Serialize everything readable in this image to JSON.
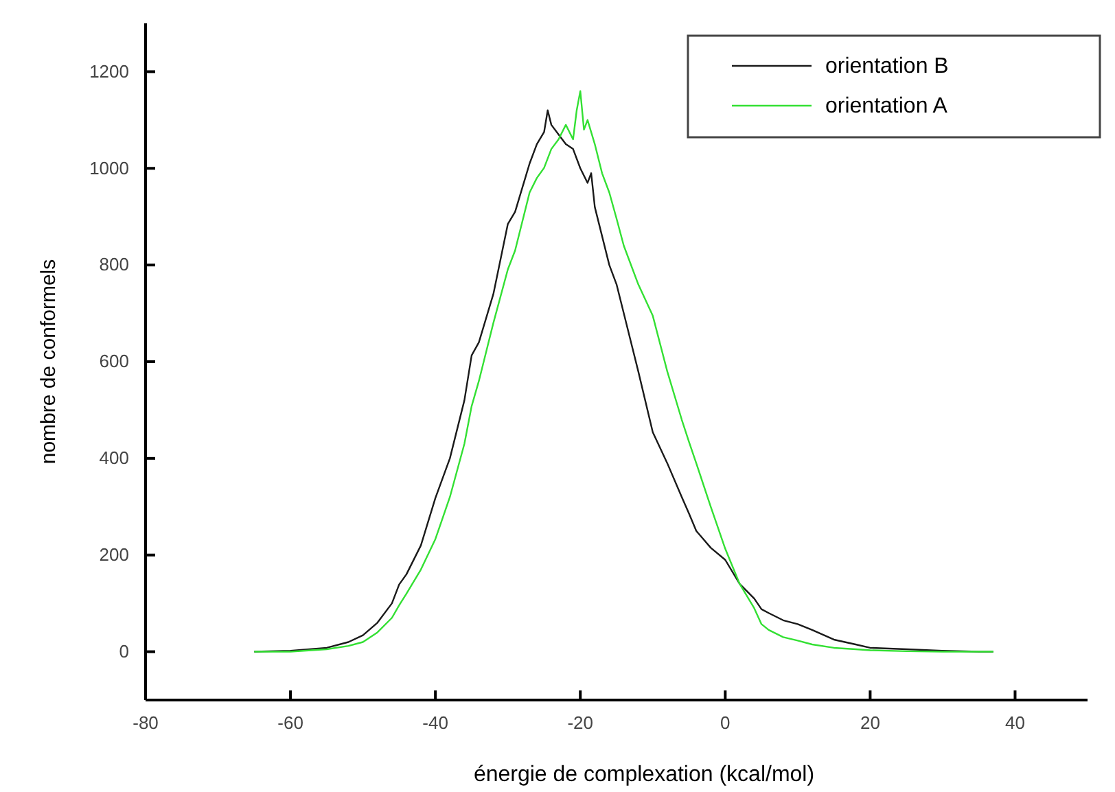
{
  "chart_data": {
    "type": "line",
    "xlabel": "énergie de complexation (kcal/mol)",
    "ylabel": "nombre de conformels",
    "xlim": [
      -80,
      50
    ],
    "xticks": [
      -80,
      -60,
      -40,
      -20,
      0,
      20,
      40
    ],
    "ylim": [
      -100,
      1300
    ],
    "yticks": [
      0,
      200,
      400,
      600,
      800,
      1000,
      1200
    ],
    "legend": "top right",
    "grid": false,
    "marker": "none",
    "line_style": "solid",
    "series": [
      {
        "name": "orientation B",
        "color": "#1a1a1a",
        "x": [
          -65,
          -60,
          -55,
          -52,
          -50,
          -48,
          -46,
          -45,
          -44,
          -42,
          -40,
          -38,
          -36,
          -35,
          -34,
          -32,
          -30,
          -29,
          -28,
          -27,
          -26,
          -25,
          -24.5,
          -24,
          -23,
          -22,
          -21,
          -20,
          -19,
          -18.5,
          -18,
          -17,
          -16,
          -15,
          -14,
          -12,
          -10,
          -8,
          -6,
          -5,
          -4,
          -2,
          0,
          2,
          4,
          5,
          6,
          8,
          10,
          12,
          15,
          18,
          20,
          25,
          30,
          35,
          37
        ],
        "values": [
          0,
          2,
          8,
          20,
          34,
          60,
          100,
          139,
          160,
          220,
          318,
          400,
          520,
          613,
          640,
          740,
          885,
          910,
          960,
          1010,
          1050,
          1075,
          1120,
          1090,
          1070,
          1050,
          1040,
          1000,
          970,
          990,
          920,
          860,
          800,
          760,
          700,
          580,
          454,
          390,
          320,
          286,
          250,
          215,
          190,
          140,
          110,
          88,
          80,
          65,
          57,
          45,
          25,
          15,
          8,
          5,
          2,
          0,
          0
        ]
      },
      {
        "name": "orientation A",
        "color": "#33e033",
        "x": [
          -65,
          -60,
          -55,
          -52,
          -50,
          -48,
          -46,
          -45,
          -44,
          -42,
          -40,
          -38,
          -36,
          -35,
          -34,
          -32,
          -30,
          -29,
          -28,
          -27,
          -26,
          -25,
          -24,
          -23,
          -22,
          -21,
          -20.5,
          -20,
          -19.5,
          -19,
          -18,
          -17,
          -16,
          -15,
          -14,
          -12,
          -10,
          -8,
          -6,
          -5,
          -4,
          -2,
          0,
          2,
          4,
          5,
          6,
          8,
          10,
          12,
          15,
          18,
          20,
          25,
          30,
          35,
          37
        ],
        "values": [
          0,
          0,
          5,
          12,
          20,
          40,
          70,
          96,
          120,
          170,
          233,
          320,
          430,
          508,
          560,
          680,
          791,
          830,
          890,
          950,
          980,
          1001,
          1040,
          1060,
          1090,
          1060,
          1120,
          1160,
          1080,
          1100,
          1050,
          990,
          950,
          896,
          840,
          760,
          695,
          580,
          480,
          434,
          390,
          300,
          213,
          140,
          90,
          57,
          45,
          30,
          23,
          15,
          8,
          5,
          3,
          1,
          0,
          0,
          0
        ]
      }
    ]
  }
}
